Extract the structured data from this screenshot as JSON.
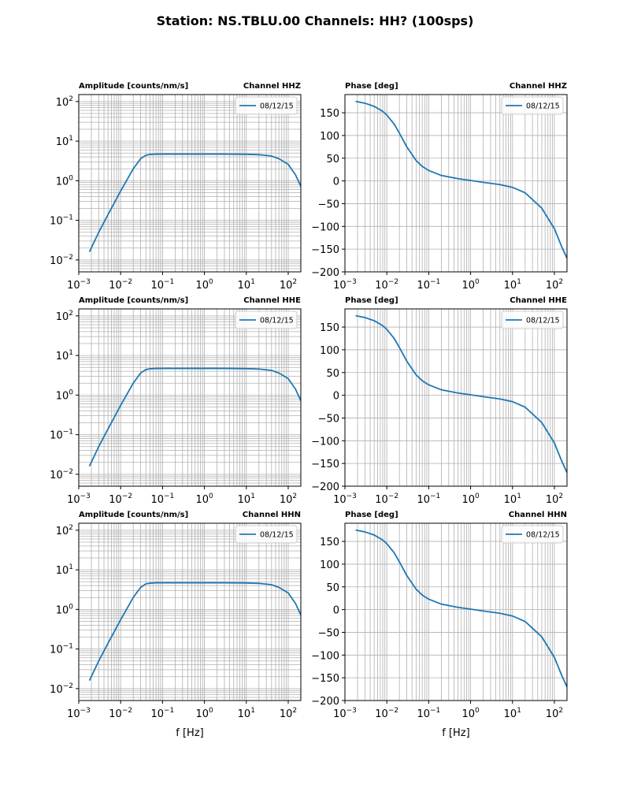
{
  "figure": {
    "title": "Station: NS.TBLU.00 Channels: HH? (100sps)"
  },
  "colors": {
    "series": "#1f77b4",
    "grid": "#b0b0b0",
    "axes": "#000000"
  },
  "chart_data": [
    {
      "type": "line",
      "panel": "amplitude",
      "channel": "HHZ",
      "title_left": "Amplitude [counts/nm/s]",
      "title_right": "Channel HHZ",
      "xscale": "log",
      "yscale": "log",
      "xlim": [
        0.001,
        200
      ],
      "ylim": [
        0.005,
        150
      ],
      "xlabel": "",
      "legend": [
        "08/12/15"
      ],
      "legend_position": "top-right",
      "grid": true,
      "series": [
        {
          "name": "08/12/15",
          "x": [
            0.0018,
            0.003,
            0.005,
            0.01,
            0.02,
            0.03,
            0.04,
            0.05,
            0.07,
            0.1,
            0.3,
            1,
            3,
            10,
            20,
            40,
            60,
            100,
            150,
            200
          ],
          "y": [
            0.016,
            0.05,
            0.14,
            0.55,
            2.0,
            3.6,
            4.4,
            4.6,
            4.7,
            4.7,
            4.7,
            4.7,
            4.7,
            4.65,
            4.55,
            4.2,
            3.6,
            2.6,
            1.4,
            0.72
          ]
        }
      ]
    },
    {
      "type": "line",
      "panel": "phase",
      "channel": "HHZ",
      "title_left": "Phase [deg]",
      "title_right": "Channel HHZ",
      "xscale": "log",
      "yscale": "linear",
      "xlim": [
        0.001,
        200
      ],
      "ylim": [
        -200,
        190
      ],
      "yticks": [
        150,
        100,
        50,
        0,
        -50,
        -100,
        -150,
        -200
      ],
      "xlabel": "",
      "legend": [
        "08/12/15"
      ],
      "legend_position": "top-right",
      "grid": true,
      "series": [
        {
          "name": "08/12/15",
          "x": [
            0.0018,
            0.003,
            0.005,
            0.008,
            0.01,
            0.015,
            0.02,
            0.03,
            0.05,
            0.07,
            0.1,
            0.2,
            0.5,
            1,
            2,
            5,
            10,
            20,
            50,
            100,
            150,
            200
          ],
          "y": [
            175,
            171,
            164,
            153,
            145,
            125,
            105,
            75,
            45,
            32,
            23,
            12,
            5,
            1,
            -3,
            -8,
            -14,
            -26,
            -60,
            -105,
            -145,
            -170
          ]
        }
      ]
    },
    {
      "type": "line",
      "panel": "amplitude",
      "channel": "HHE",
      "title_left": "Amplitude [counts/nm/s]",
      "title_right": "Channel HHE",
      "xscale": "log",
      "yscale": "log",
      "xlim": [
        0.001,
        200
      ],
      "ylim": [
        0.005,
        150
      ],
      "xlabel": "",
      "legend": [
        "08/12/15"
      ],
      "legend_position": "top-right",
      "grid": true,
      "series": [
        {
          "name": "08/12/15",
          "x": [
            0.0018,
            0.003,
            0.005,
            0.01,
            0.02,
            0.03,
            0.04,
            0.05,
            0.07,
            0.1,
            0.3,
            1,
            3,
            10,
            20,
            40,
            60,
            100,
            150,
            200
          ],
          "y": [
            0.016,
            0.05,
            0.14,
            0.55,
            2.0,
            3.6,
            4.4,
            4.6,
            4.7,
            4.7,
            4.7,
            4.7,
            4.7,
            4.65,
            4.55,
            4.2,
            3.6,
            2.6,
            1.4,
            0.72
          ]
        }
      ]
    },
    {
      "type": "line",
      "panel": "phase",
      "channel": "HHE",
      "title_left": "Phase [deg]",
      "title_right": "Channel HHE",
      "xscale": "log",
      "yscale": "linear",
      "xlim": [
        0.001,
        200
      ],
      "ylim": [
        -200,
        190
      ],
      "yticks": [
        150,
        100,
        50,
        0,
        -50,
        -100,
        -150,
        -200
      ],
      "xlabel": "",
      "legend": [
        "08/12/15"
      ],
      "legend_position": "top-right",
      "grid": true,
      "series": [
        {
          "name": "08/12/15",
          "x": [
            0.0018,
            0.003,
            0.005,
            0.008,
            0.01,
            0.015,
            0.02,
            0.03,
            0.05,
            0.07,
            0.1,
            0.2,
            0.5,
            1,
            2,
            5,
            10,
            20,
            50,
            100,
            150,
            200
          ],
          "y": [
            175,
            171,
            164,
            153,
            145,
            125,
            105,
            75,
            45,
            32,
            23,
            12,
            5,
            1,
            -3,
            -8,
            -14,
            -26,
            -60,
            -105,
            -145,
            -170
          ]
        }
      ]
    },
    {
      "type": "line",
      "panel": "amplitude",
      "channel": "HHN",
      "title_left": "Amplitude [counts/nm/s]",
      "title_right": "Channel HHN",
      "xscale": "log",
      "yscale": "log",
      "xlim": [
        0.001,
        200
      ],
      "ylim": [
        0.005,
        150
      ],
      "xlabel": "f [Hz]",
      "legend": [
        "08/12/15"
      ],
      "legend_position": "top-right",
      "grid": true,
      "series": [
        {
          "name": "08/12/15",
          "x": [
            0.0018,
            0.003,
            0.005,
            0.01,
            0.02,
            0.03,
            0.04,
            0.05,
            0.07,
            0.1,
            0.3,
            1,
            3,
            10,
            20,
            40,
            60,
            100,
            150,
            200
          ],
          "y": [
            0.016,
            0.05,
            0.14,
            0.55,
            2.0,
            3.6,
            4.4,
            4.6,
            4.7,
            4.7,
            4.7,
            4.7,
            4.7,
            4.65,
            4.55,
            4.2,
            3.6,
            2.6,
            1.4,
            0.72
          ]
        }
      ]
    },
    {
      "type": "line",
      "panel": "phase",
      "channel": "HHN",
      "title_left": "Phase [deg]",
      "title_right": "Channel HHN",
      "xscale": "log",
      "yscale": "linear",
      "xlim": [
        0.001,
        200
      ],
      "ylim": [
        -200,
        190
      ],
      "yticks": [
        150,
        100,
        50,
        0,
        -50,
        -100,
        -150,
        -200
      ],
      "xlabel": "f [Hz]",
      "legend": [
        "08/12/15"
      ],
      "legend_position": "top-right",
      "grid": true,
      "series": [
        {
          "name": "08/12/15",
          "x": [
            0.0018,
            0.003,
            0.005,
            0.008,
            0.01,
            0.015,
            0.02,
            0.03,
            0.05,
            0.07,
            0.1,
            0.2,
            0.5,
            1,
            2,
            5,
            10,
            20,
            50,
            100,
            150,
            200
          ],
          "y": [
            175,
            171,
            164,
            153,
            145,
            125,
            105,
            75,
            45,
            32,
            23,
            12,
            5,
            1,
            -3,
            -8,
            -14,
            -26,
            -60,
            -105,
            -145,
            -170
          ]
        }
      ]
    }
  ]
}
